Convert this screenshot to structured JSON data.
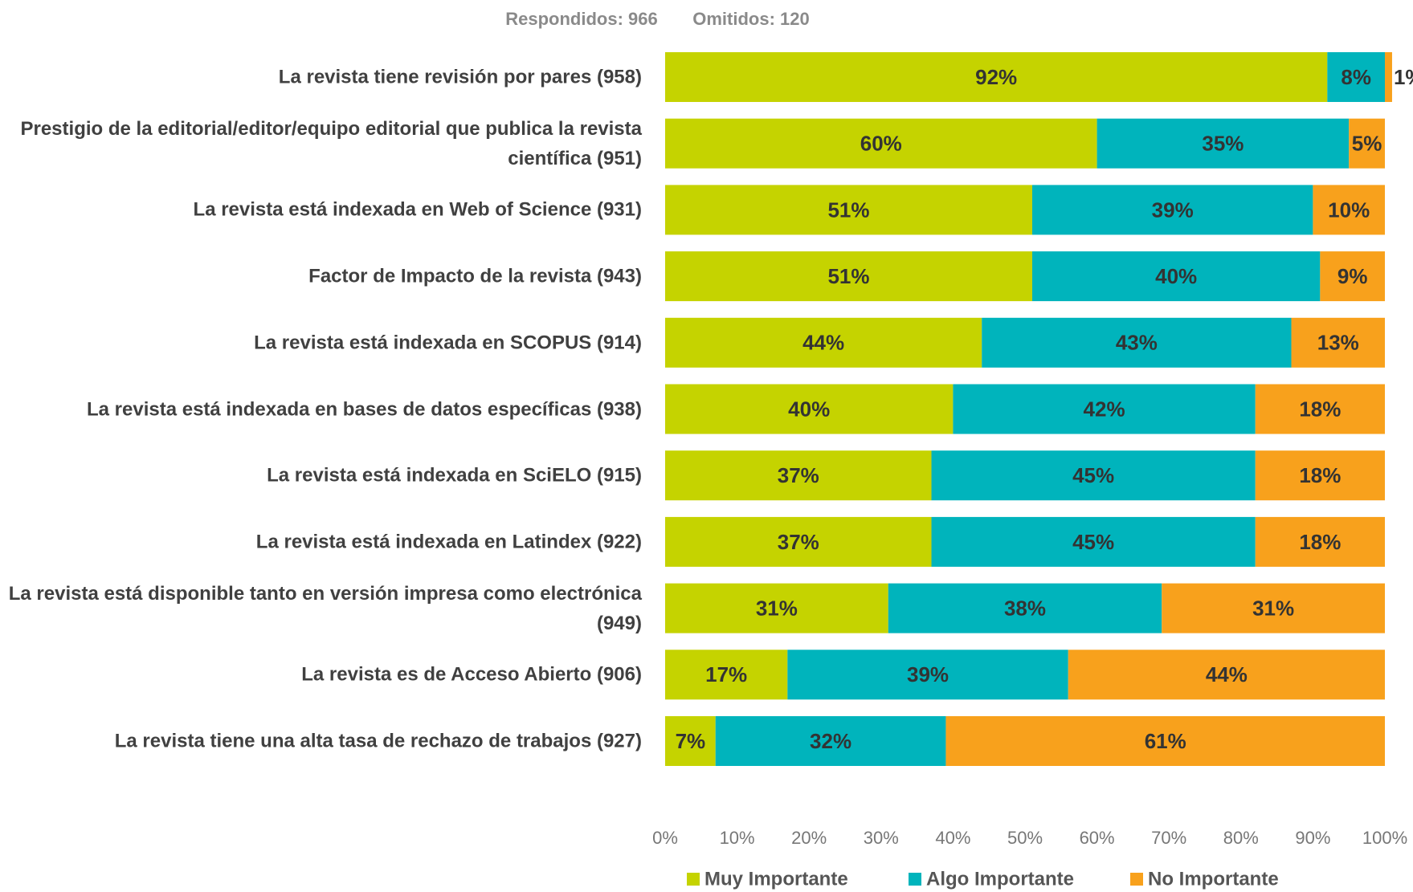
{
  "chart_data": {
    "type": "stacked_barh",
    "header": [
      "Respondidos: 966",
      "Omitidos: 120"
    ],
    "categories": [
      "La revista tiene revisión por pares (958)",
      "Prestigio de la editorial/editor/equipo editorial que publica la revista científica (951)",
      "La revista está indexada en Web of Science (931)",
      "Factor de Impacto de la revista (943)",
      "La revista está indexada en SCOPUS (914)",
      "La revista está indexada en bases de datos específicas (938)",
      "La revista está indexada en SciELO (915)",
      "La revista está indexada en Latindex (922)",
      "La revista está disponible tanto en versión impresa como electrónica (949)",
      "La revista es de Acceso Abierto (906)",
      "La revista tiene una alta tasa de rechazo de trabajos (927)"
    ],
    "series": [
      {
        "name": "Muy Importante",
        "color": "#c5d300",
        "values": [
          92,
          60,
          51,
          51,
          44,
          40,
          37,
          37,
          31,
          17,
          7
        ],
        "value_labels": [
          "92%",
          "60%",
          "51%",
          "51%",
          "44%",
          "40%",
          "37%",
          "37%",
          "31%",
          "17%",
          "7%"
        ]
      },
      {
        "name": "Algo Importante",
        "color": "#00b4bc",
        "values": [
          8,
          35,
          39,
          40,
          43,
          42,
          45,
          45,
          38,
          39,
          32
        ],
        "value_labels": [
          "8%",
          "35%",
          "39%",
          "40%",
          "43%",
          "42%",
          "45%",
          "45%",
          "38%",
          "39%",
          "32%"
        ]
      },
      {
        "name": "No Importante",
        "color": "#f8a11c",
        "values": [
          1,
          5,
          10,
          9,
          13,
          18,
          18,
          18,
          31,
          44,
          61
        ],
        "value_labels": [
          "1%",
          "5%",
          "10%",
          "9%",
          "13%",
          "18%",
          "18%",
          "18%",
          "31%",
          "44%",
          "61%"
        ]
      }
    ],
    "xlim": [
      0,
      100
    ],
    "xticks": [
      {
        "value": 0,
        "label": "0%"
      },
      {
        "value": 10,
        "label": "10%"
      },
      {
        "value": 20,
        "label": "20%"
      },
      {
        "value": 30,
        "label": "30%"
      },
      {
        "value": 40,
        "label": "40%"
      },
      {
        "value": 50,
        "label": "50%"
      },
      {
        "value": 60,
        "label": "60%"
      },
      {
        "value": 70,
        "label": "70%"
      },
      {
        "value": 80,
        "label": "80%"
      },
      {
        "value": 90,
        "label": "90%"
      },
      {
        "value": 100,
        "label": "100%"
      }
    ]
  }
}
